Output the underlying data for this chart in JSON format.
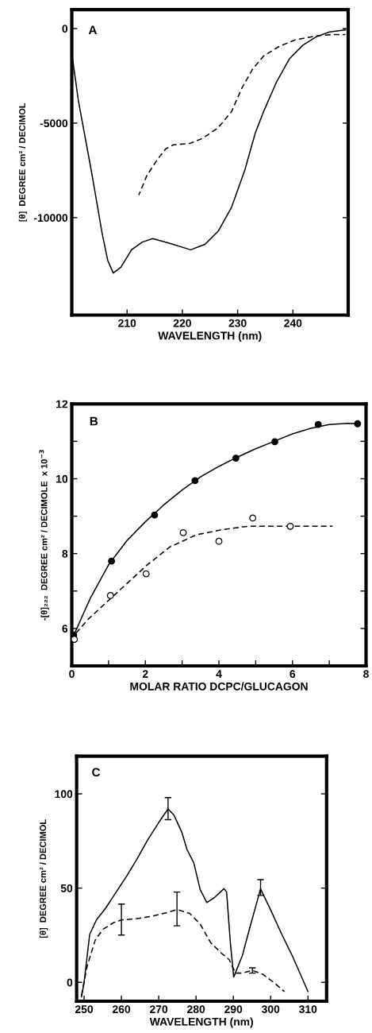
{
  "chart_data": [
    {
      "type": "line",
      "xlabel": "WAVELENGTH (nm)",
      "ylabel": "[θ]  DEGREE cm² / DECIMOL",
      "annotations": [
        "A"
      ],
      "xlim": [
        200,
        250
      ],
      "ylim": [
        -15150,
        1000
      ],
      "xticks": [
        210,
        220,
        230,
        240
      ],
      "yticks": [
        {
          "value": 0,
          "label": "0"
        },
        {
          "value": -5000,
          "label": "-5000"
        },
        {
          "value": -10000,
          "label": "-10000"
        }
      ],
      "grid": false,
      "legend": false,
      "series": [
        {
          "color": "#000000",
          "line_style": "solid",
          "x": [
            200,
            201.2,
            203.6,
            205.5,
            206.5,
            207.5,
            208.9,
            210.8,
            212.7,
            214.6,
            217.5,
            221.5,
            224.1,
            226.5,
            228.9,
            231.3,
            233.2,
            234.7,
            237.0,
            239.4,
            241.8,
            244.2,
            246.6,
            249.5
          ],
          "values": [
            -1300,
            -3830,
            -7630,
            -10850,
            -12260,
            -12930,
            -12610,
            -11700,
            -11300,
            -11110,
            -11340,
            -11700,
            -11410,
            -10710,
            -9450,
            -7480,
            -5520,
            -4390,
            -2850,
            -1590,
            -880,
            -440,
            -180,
            -70
          ]
        },
        {
          "color": "#000000",
          "line_style": "dashed",
          "x": [
            212.1,
            213.6,
            215.5,
            217,
            218.4,
            221.3,
            223.7,
            226.5,
            228.9,
            230.8,
            232.7,
            234.7,
            237.5,
            240.4,
            244.2,
            247,
            249.5
          ],
          "values": [
            -8820,
            -7760,
            -6920,
            -6360,
            -6150,
            -6080,
            -5800,
            -5240,
            -4390,
            -3130,
            -2150,
            -1450,
            -950,
            -600,
            -390,
            -320,
            -320
          ]
        }
      ]
    },
    {
      "type": "scatter",
      "xlabel": "MOLAR RATIO DCPC/GLUCAGON",
      "ylabel": "-[θ]₂₂₂  DEGREE cm² / DECIMOLE  x 10$^{−3}$",
      "annotations": [
        "B"
      ],
      "xlim": [
        0,
        8
      ],
      "ylim": [
        5,
        12
      ],
      "xticks": [
        0,
        {
          "value": 1,
          "label": null
        },
        2,
        {
          "value": 3,
          "label": null
        },
        4,
        {
          "value": 5,
          "label": null
        },
        6,
        {
          "value": 7,
          "label": null
        },
        8
      ],
      "yticks": [
        6,
        {
          "value": 7,
          "label": null
        },
        8,
        {
          "value": 9,
          "label": null
        },
        10,
        {
          "value": 11,
          "label": null
        },
        12
      ],
      "grid": false,
      "legend": false,
      "marker": "circle",
      "series": [
        {
          "color": "#000000",
          "x": [
            0.05,
            1.08,
            2.25,
            3.35,
            4.46,
            5.52,
            6.7,
            7.77
          ],
          "values": [
            5.82,
            7.8,
            9.03,
            9.95,
            10.55,
            10.99,
            11.45,
            11.47
          ]
        },
        {
          "color": "#ffffff",
          "x": [
            0.07,
            1.05,
            2.02,
            3.03,
            4.0,
            4.92,
            5.94
          ],
          "values": [
            5.71,
            6.88,
            7.46,
            8.56,
            8.33,
            8.95,
            8.73
          ]
        },
        {
          "type": "line",
          "color": "#000000",
          "line_style": "solid",
          "marker": "none",
          "x": [
            0,
            0.5,
            1,
            1.5,
            2,
            2.5,
            3,
            3.5,
            4,
            4.5,
            5,
            5.5,
            6,
            6.5,
            7,
            7.5,
            7.8
          ],
          "values": [
            5.7,
            6.8,
            7.7,
            8.35,
            8.85,
            9.3,
            9.7,
            10.05,
            10.33,
            10.58,
            10.8,
            11.0,
            11.2,
            11.35,
            11.45,
            11.48,
            11.47
          ]
        },
        {
          "type": "line",
          "color": "#000000",
          "line_style": "dashed",
          "marker": "none",
          "x": [
            0,
            0.45,
            0.9,
            1.61,
            2.04,
            2.67,
            3.38,
            4.09,
            4.79,
            5.5,
            7.09
          ],
          "values": [
            5.75,
            6.25,
            6.66,
            7.3,
            7.69,
            8.18,
            8.5,
            8.64,
            8.73,
            8.73,
            8.73
          ]
        }
      ]
    },
    {
      "type": "line",
      "xlabel": "WAVELENGTH (nm)",
      "ylabel": "[θ]  DEGREE cm² / DECIMOL",
      "annotations": [
        "C"
      ],
      "xlim": [
        248,
        315
      ],
      "ylim": [
        -10,
        120
      ],
      "xticks": [
        250,
        260,
        270,
        280,
        290,
        300,
        310
      ],
      "yticks": [
        0,
        50,
        100
      ],
      "grid": false,
      "legend": false,
      "series": [
        {
          "color": "#000000",
          "line_style": "solid",
          "x": [
            249.3,
            250,
            251.5,
            253.3,
            255.8,
            258.6,
            261.4,
            264.2,
            267.0,
            269.9,
            272.5,
            274.1,
            276.2,
            277.6,
            279.4,
            281.1,
            282.9,
            285,
            287.5,
            288.2,
            289.2,
            290.1,
            292.4,
            294.5,
            297.3,
            300.1,
            303.0,
            305.8,
            310
          ],
          "values": [
            -7.7,
            0,
            25.4,
            33.1,
            39.4,
            47.9,
            56.3,
            65.5,
            75.4,
            84.5,
            92.0,
            88.7,
            79.6,
            70.4,
            63.4,
            49.3,
            42.3,
            45.1,
            49.7,
            47.9,
            21.1,
            2.8,
            14.1,
            29.6,
            49.6,
            38.0,
            25.4,
            14.1,
            -4.9
          ],
          "errors": [
            null,
            null,
            null,
            null,
            null,
            null,
            null,
            null,
            null,
            null,
            [
              86.3,
              98.0
            ],
            null,
            null,
            null,
            null,
            null,
            null,
            null,
            null,
            null,
            null,
            null,
            null,
            null,
            [
              46.1,
              54.5
            ],
            null,
            null,
            null,
            null
          ]
        },
        {
          "color": "#000000",
          "line_style": "dashed",
          "x": [
            249.3,
            250.8,
            253,
            255.1,
            257.9,
            260,
            264.2,
            268.5,
            272,
            274.9,
            278.3,
            281.1,
            283.9,
            286.8,
            288.9,
            290.6,
            292.4,
            295.1,
            298.0,
            300.8,
            303.7
          ],
          "values": [
            -7,
            8.5,
            22.5,
            28.2,
            31.7,
            33.1,
            33.8,
            35.2,
            36.9,
            38.6,
            36.6,
            31.0,
            21.1,
            15.5,
            12,
            4.9,
            4.9,
            6.3,
            4.2,
            0,
            -4.9
          ],
          "errors": [
            null,
            null,
            null,
            null,
            null,
            [
              25.1,
              41.5
            ],
            null,
            null,
            null,
            [
              30.0,
              47.9
            ],
            null,
            null,
            null,
            null,
            null,
            null,
            null,
            [
              4.9,
              7.7
            ],
            null,
            null,
            null
          ]
        }
      ]
    }
  ]
}
